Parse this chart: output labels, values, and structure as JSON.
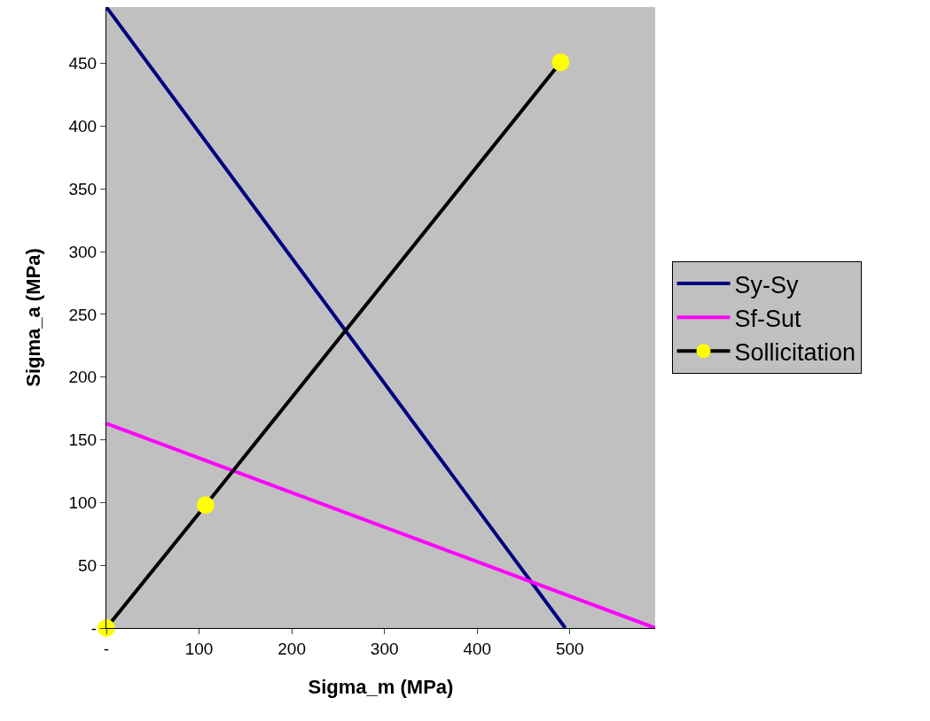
{
  "chart_data": {
    "type": "line",
    "xlabel": "Sigma_m (MPa)",
    "ylabel": "Sigma_a (MPa)",
    "series": [
      {
        "name": "Sy-Sy",
        "color": "#000080",
        "x": [
          0,
          495
        ],
        "values": [
          495,
          0
        ],
        "marker": "none"
      },
      {
        "name": "Sf-Sut",
        "color": "#ff00ff",
        "x": [
          0,
          592
        ],
        "values": [
          163,
          0
        ],
        "marker": "none"
      },
      {
        "name": "Sollicitation",
        "color": "#000000",
        "colors": [
          "#ffff00",
          "#ffff00",
          "#ffff00"
        ],
        "x": [
          0,
          107,
          490
        ],
        "values": [
          0,
          98,
          451
        ],
        "marker": "circle"
      }
    ],
    "xlim": [
      0,
      592
    ],
    "ylim": [
      0,
      495
    ],
    "xticks": [
      {
        "value": 0,
        "label": "-"
      },
      100,
      200,
      300,
      400,
      500
    ],
    "yticks": [
      {
        "value": 0,
        "label": "-"
      },
      50,
      100,
      150,
      200,
      250,
      300,
      350,
      400,
      450
    ],
    "grid": false,
    "legend": "right",
    "line_style": "solid"
  }
}
